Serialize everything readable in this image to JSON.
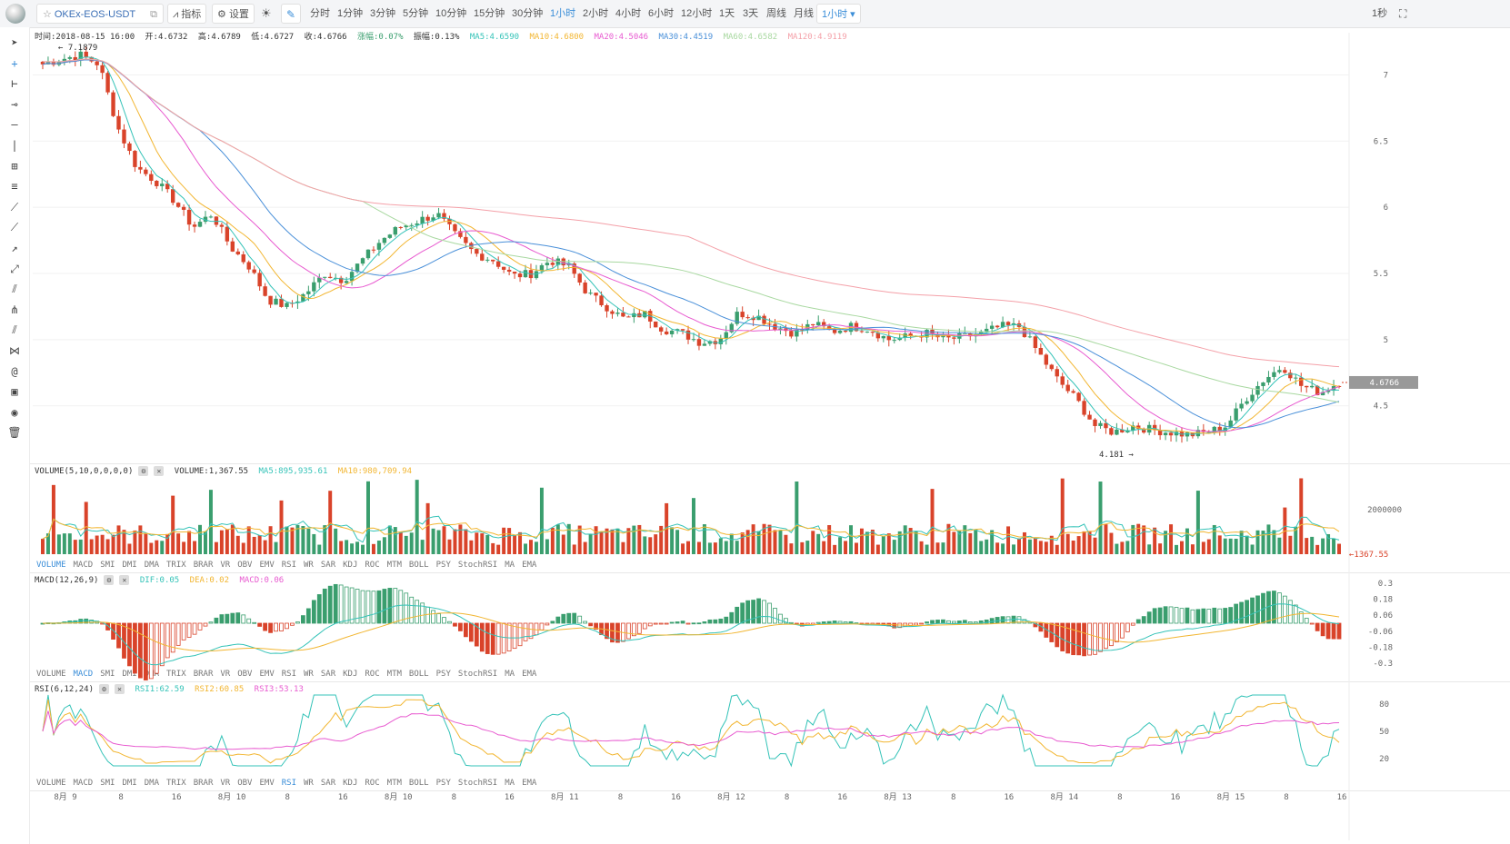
{
  "toolbar": {
    "symbol": "OKEx-EOS-USDT",
    "indicator_label": "指标",
    "settings_label": "设置",
    "periods": [
      "分时",
      "1分钟",
      "3分钟",
      "5分钟",
      "10分钟",
      "15分钟",
      "30分钟",
      "1小时",
      "2小时",
      "4小时",
      "6小时",
      "12小时",
      "1天",
      "3天",
      "周线",
      "月线"
    ],
    "active_period": "1小时",
    "period_dropdown": "1小时",
    "refresh": "1秒"
  },
  "left_tools": [
    "cursor-icon",
    "crosshair-icon",
    "segment-icon",
    "horizontal-ray-icon",
    "horizontal-line-icon",
    "vertical-line-icon",
    "price-range-icon",
    "parallel-lines-icon",
    "trend-line-icon",
    "ray-icon",
    "arrow-line-icon",
    "extended-line-icon",
    "fib-fan-icon",
    "pitchfork-icon",
    "parallel-channel-icon",
    "gann-icon",
    "spiral-icon",
    "camera-icon",
    "eye-icon",
    "trash-icon"
  ],
  "ohlc": {
    "time": "时间:2018-08-15 16:00",
    "open": "开:4.6732",
    "high": "高:4.6789",
    "low": "低:4.6727",
    "close": "收:4.6766",
    "change": "涨幅:0.07%",
    "amplitude": "振幅:0.13%",
    "ma5": "MA5:4.6590",
    "ma10": "MA10:4.6800",
    "ma20": "MA20:4.5046",
    "ma30": "MA30:4.4519",
    "ma60": "MA60:4.6582",
    "ma120": "MA120:4.9119"
  },
  "annotations": {
    "high_mark": "7.1879",
    "low_mark": "4.181",
    "last_price": "4.6766",
    "volume_last": "1367.55"
  },
  "volume": {
    "title": "VOLUME(5,10,0,0,0,0)",
    "current": "VOLUME:1,367.55",
    "ma5": "MA5:895,935.61",
    "ma10": "MA10:980,709.94"
  },
  "macd": {
    "title": "MACD(12,26,9)",
    "dif": "DIF:0.05",
    "dea": "DEA:0.02",
    "macd": "MACD:0.06"
  },
  "rsi": {
    "title": "RSI(6,12,24)",
    "rsi1": "RSI1:62.59",
    "rsi2": "RSI2:60.85",
    "rsi3": "RSI3:53.13"
  },
  "indicator_tabs": [
    "VOLUME",
    "MACD",
    "SMI",
    "DMI",
    "DMA",
    "TRIX",
    "BRAR",
    "VR",
    "OBV",
    "EMV",
    "RSI",
    "WR",
    "SAR",
    "KDJ",
    "ROC",
    "MTM",
    "BOLL",
    "PSY",
    "StochRSI",
    "MA",
    "EMA"
  ],
  "tabs_active": [
    "VOLUME",
    "MACD",
    "RSI"
  ],
  "x_axis_labels": [
    "8月 9",
    "8",
    "16",
    "8月 10",
    "8",
    "16",
    "8月 10",
    "8",
    "16",
    "8月 11",
    "8",
    "16",
    "8月 12",
    "8",
    "16",
    "8月 13",
    "8",
    "16",
    "8月 14",
    "8",
    "16",
    "8月 15",
    "8",
    "16"
  ],
  "colors": {
    "up": "#3a9e6e",
    "down": "#d9432a",
    "ma5": "#35c3b8",
    "ma10": "#f2b632",
    "ma20": "#e85bd0",
    "ma30": "#4a90d9",
    "ma60": "#a8d8a0",
    "ma120": "#f4a0a8",
    "accent": "#3b8ed8"
  },
  "chart_data": [
    {
      "type": "candlestick",
      "title": "OKEx-EOS-USDT",
      "yticks": [
        7,
        6.5,
        6,
        5.5,
        5,
        4.5
      ],
      "ylim": [
        4.1,
        7.25
      ],
      "close_path": [
        7.08,
        7.12,
        7.15,
        7.08,
        6.6,
        6.3,
        6.2,
        6.05,
        5.85,
        5.95,
        5.7,
        5.55,
        5.3,
        5.25,
        5.35,
        5.5,
        5.45,
        5.6,
        5.75,
        5.85,
        5.9,
        5.95,
        5.78,
        5.65,
        5.6,
        5.48,
        5.5,
        5.6,
        5.55,
        5.35,
        5.25,
        5.15,
        5.2,
        5.08,
        5.05,
        4.98,
        5.0,
        5.2,
        5.18,
        5.1,
        5.05,
        5.12,
        5.06,
        5.1,
        5.08,
        5.0,
        5.02,
        5.05,
        5.0,
        5.02,
        5.05,
        5.1,
        5.1,
        4.9,
        4.7,
        4.55,
        4.35,
        4.3,
        4.35,
        4.32,
        4.3,
        4.28,
        4.3,
        4.35,
        4.55,
        4.7,
        4.8,
        4.65,
        4.6,
        4.68
      ],
      "ma_lines": [
        "MA5",
        "MA10",
        "MA20",
        "MA30",
        "MA60",
        "MA120"
      ],
      "high_label": "7.1879",
      "low_label": "4.181",
      "last_price": 4.6766
    },
    {
      "type": "bar",
      "title": "VOLUME(5,10,0,0,0,0)",
      "yticks": [
        2000000
      ],
      "series": [
        {
          "name": "VOLUME"
        },
        {
          "name": "MA5"
        },
        {
          "name": "MA10"
        }
      ]
    },
    {
      "type": "bar",
      "title": "MACD(12,26,9)",
      "yticks": [
        0.3,
        0.18,
        0.06,
        -0.06,
        -0.18,
        -0.3
      ],
      "series": [
        {
          "name": "DIF"
        },
        {
          "name": "DEA"
        },
        {
          "name": "MACD"
        }
      ]
    },
    {
      "type": "line",
      "title": "RSI(6,12,24)",
      "yticks": [
        80,
        50,
        20
      ],
      "series": [
        {
          "name": "RSI1"
        },
        {
          "name": "RSI2"
        },
        {
          "name": "RSI3"
        }
      ]
    }
  ]
}
